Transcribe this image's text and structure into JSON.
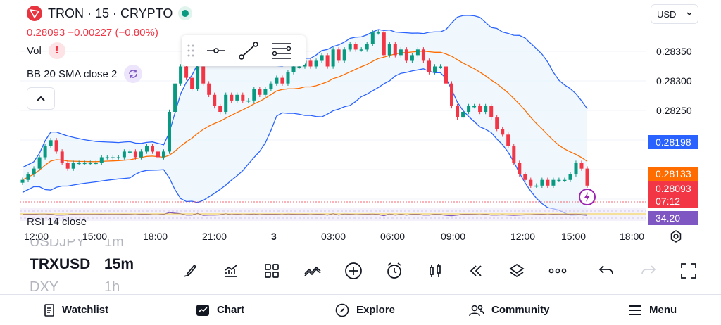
{
  "header": {
    "title": "TRON · 15 · CRYPTO",
    "quote": "0.28093 −0.00227 (−0.80%)"
  },
  "indicators": {
    "vol": "Vol",
    "bb": "BB 20 SMA close 2",
    "rsi": "RSI 14 close"
  },
  "currency": {
    "label": "USD"
  },
  "price_axis": {
    "labels": [
      "0.28350",
      "0.28300",
      "0.28250"
    ],
    "bb_upper_tag": "0.28198",
    "bb_basis_tag": "0.28133",
    "last_price_tag": "0.28093",
    "countdown": "07:12",
    "rsi_tag": "34.20"
  },
  "time_axis": [
    "12:00",
    "15:00",
    "18:00",
    "21:00",
    "3",
    "03:00",
    "06:00",
    "09:00",
    "12:00",
    "15:00",
    "18:00"
  ],
  "colors": {
    "up": "#089981",
    "down": "#f23645",
    "bb_band": "#2962ff",
    "bb_basis": "#ff6d00",
    "rsi": "#7e57c2",
    "last_price": "#f23645"
  },
  "symbols": {
    "prev_symbol": "USDJPY",
    "prev_tf": "1m",
    "symbol": "TRXUSD",
    "timeframe": "15m",
    "next_symbol": "DXY",
    "next_tf": "1h"
  },
  "chart_data": {
    "type": "candlestick",
    "symbol": "TRON",
    "interval": "15",
    "ylim": [
      0.2806,
      0.2838
    ],
    "bands": {
      "upper": 0.28198,
      "basis": 0.28133
    },
    "closes": [
      0.281,
      0.2811,
      0.2812,
      0.2814,
      0.2816,
      0.2817,
      0.2815,
      0.2813,
      0.2812,
      0.2813,
      0.2813,
      0.2813,
      0.2813,
      0.2813,
      0.2814,
      0.2814,
      0.2814,
      0.2814,
      0.2815,
      0.2815,
      0.2814,
      0.2815,
      0.2816,
      0.2815,
      0.2814,
      0.2815,
      0.2822,
      0.2827,
      0.283,
      0.2828,
      0.2826,
      0.283,
      0.2827,
      0.2825,
      0.2823,
      0.2822,
      0.2825,
      0.2824,
      0.2825,
      0.2824,
      0.2824,
      0.2826,
      0.2825,
      0.2826,
      0.2827,
      0.2828,
      0.2827,
      0.2829,
      0.283,
      0.283,
      0.2831,
      0.283,
      0.2831,
      0.2832,
      0.283,
      0.2833,
      0.2831,
      0.2833,
      0.2834,
      0.2833,
      0.2833,
      0.2834,
      0.2836,
      0.2836,
      0.2832,
      0.2834,
      0.2832,
      0.2833,
      0.2831,
      0.2832,
      0.2833,
      0.2831,
      0.2829,
      0.283,
      0.283,
      0.2827,
      0.2823,
      0.2821,
      0.2822,
      0.2823,
      0.2823,
      0.2822,
      0.2823,
      0.2821,
      0.2819,
      0.2818,
      0.2816,
      0.2813,
      0.2811,
      0.281,
      0.2809,
      0.2809,
      0.281,
      0.2809,
      0.281,
      0.281,
      0.281,
      0.2811,
      0.2813,
      0.2812,
      0.2809
    ],
    "rsi_value": 34.2
  },
  "toolbar": {
    "icons": [
      "brush-icon",
      "indicators-icon",
      "layout-icon",
      "compare-icon",
      "add-icon",
      "alert-icon",
      "candles-icon",
      "replay-icon",
      "layers-icon",
      "more-icon",
      "undo-icon",
      "redo-icon",
      "fullscreen-icon"
    ]
  },
  "nav": {
    "watchlist": "Watchlist",
    "chart": "Chart",
    "explore": "Explore",
    "community": "Community",
    "menu": "Menu"
  }
}
